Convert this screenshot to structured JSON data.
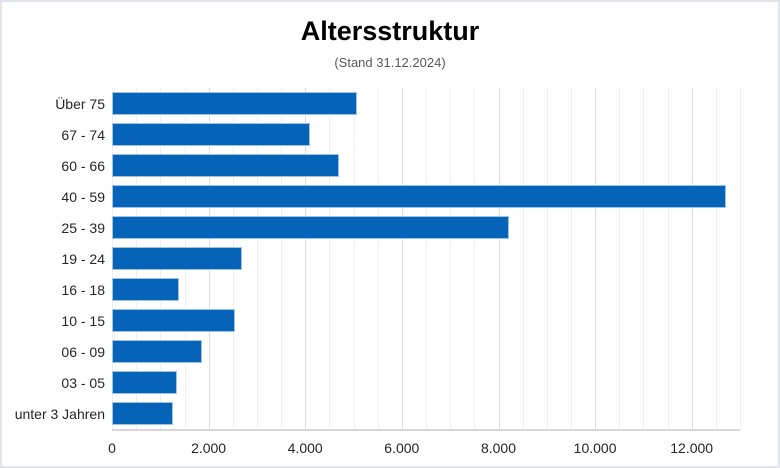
{
  "window": {
    "background_color": "#ffffff",
    "frame_border_color": "#e1e4ea"
  },
  "chart_data": {
    "type": "bar",
    "orientation": "horizontal",
    "title": "Altersstruktur",
    "subtitle": "(Stand 31.12.2024)",
    "categories": [
      "Über 75",
      "67 - 74",
      "60 - 66",
      "40 - 59",
      "25 - 39",
      "19 - 24",
      "16 - 18",
      "10 - 15",
      "06 - 09",
      "03 - 05",
      "unter 3 Jahren"
    ],
    "categories_order": "top-to-bottom",
    "values": [
      5020,
      4060,
      4650,
      12660,
      8180,
      2640,
      1340,
      2510,
      1830,
      1300,
      1230
    ],
    "xlabel": "",
    "ylabel": "",
    "xlim": [
      0,
      13000
    ],
    "x_tick_interval": 2000,
    "x_minor_gridline_interval": 500,
    "x_tick_labels": [
      "0",
      "2.000",
      "4.000",
      "6.000",
      "8.000",
      "10.000",
      "12.000"
    ],
    "number_format": "german-thousands-dot",
    "grid": "vertical minor + major",
    "legend": "none",
    "colors": {
      "bar_fill": "#0563b8",
      "bar_border": "#9dc3e6",
      "gridline_minor": "#eeeef3",
      "gridline_major": "#dcdce1",
      "axis_line": "#d6d6da",
      "title_text": "#000000",
      "subtitle_text": "#595959",
      "tick_text": "#262626"
    }
  }
}
